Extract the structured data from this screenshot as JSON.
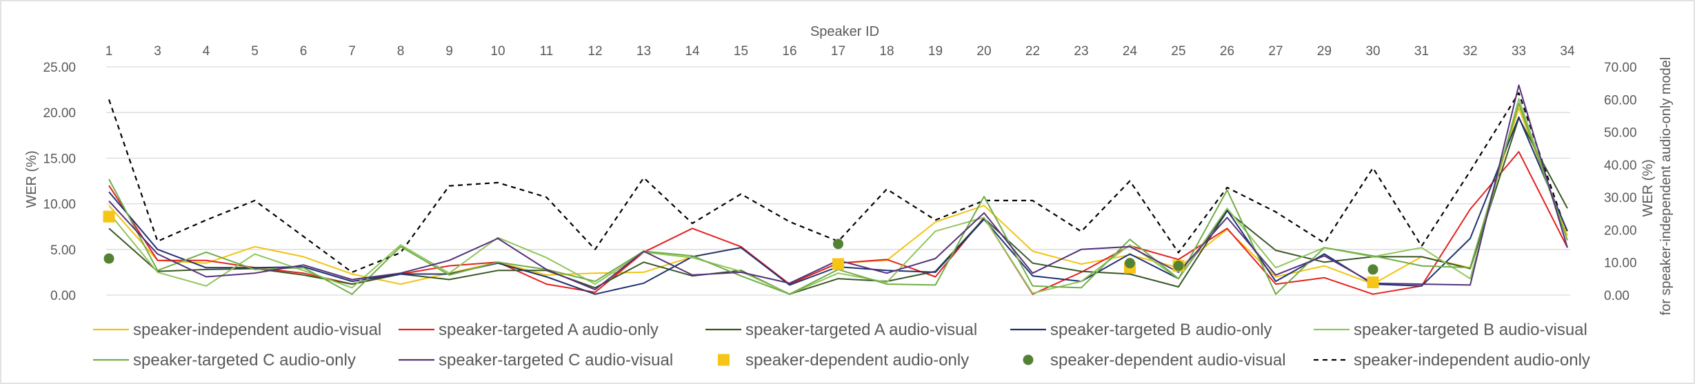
{
  "chart_data": {
    "type": "line",
    "title": "",
    "xlabel": "Speaker ID",
    "ylabel": "WER (%)",
    "y2label": [
      "WER (%)",
      "for speaker-independent audio-only model"
    ],
    "ylim": [
      0,
      25
    ],
    "y2lim": [
      0,
      70
    ],
    "yticks": [
      "0.00",
      "5.00",
      "10.00",
      "15.00",
      "20.00",
      "25.00"
    ],
    "y2ticks": [
      "0.00",
      "10.00",
      "20.00",
      "30.00",
      "40.00",
      "50.00",
      "60.00",
      "70.00"
    ],
    "categories": [
      "1",
      "3",
      "4",
      "5",
      "6",
      "7",
      "8",
      "9",
      "10",
      "11",
      "12",
      "13",
      "14",
      "15",
      "16",
      "17",
      "18",
      "19",
      "20",
      "22",
      "23",
      "24",
      "25",
      "26",
      "27",
      "29",
      "30",
      "31",
      "32",
      "33",
      "34"
    ],
    "grid": true,
    "legend_position": "bottom",
    "series": [
      {
        "name": "speaker-independent audio-visual",
        "style": "line",
        "axis": "left",
        "color": "#F2C314",
        "values": [
          9.8,
          3.8,
          3.5,
          5.3,
          4.2,
          2.3,
          1.2,
          2.4,
          3.6,
          2.2,
          2.4,
          2.5,
          4.2,
          5.2,
          1.2,
          3.5,
          3.8,
          8.0,
          9.8,
          4.8,
          3.4,
          4.4,
          3.0,
          7.2,
          2.0,
          3.2,
          1.2,
          4.2,
          3.0,
          20.5,
          6.5
        ]
      },
      {
        "name": "speaker-targeted A audio-only",
        "style": "line",
        "axis": "left",
        "color": "#E32020",
        "values": [
          12.0,
          3.8,
          3.8,
          3.0,
          2.4,
          1.2,
          2.3,
          3.2,
          3.6,
          1.2,
          0.3,
          4.7,
          7.3,
          5.3,
          1.2,
          3.5,
          3.9,
          2.0,
          8.5,
          0.1,
          2.5,
          5.4,
          3.9,
          7.3,
          1.2,
          1.9,
          0.1,
          1.0,
          9.4,
          15.7,
          5.2
        ]
      },
      {
        "name": "speaker-targeted A audio-visual",
        "style": "line",
        "axis": "left",
        "color": "#375623",
        "values": [
          7.3,
          2.6,
          2.8,
          2.9,
          2.2,
          1.2,
          2.3,
          1.7,
          2.7,
          2.7,
          0.8,
          3.6,
          2.1,
          2.7,
          0.1,
          1.8,
          1.5,
          2.6,
          8.4,
          3.5,
          2.6,
          2.3,
          0.9,
          9.2,
          4.9,
          3.6,
          4.2,
          4.2,
          2.9,
          19.4,
          9.5
        ]
      },
      {
        "name": "speaker-targeted B audio-only",
        "style": "line",
        "axis": "left",
        "color": "#1F3070",
        "values": [
          11.3,
          5.0,
          3.0,
          3.0,
          3.1,
          1.5,
          2.3,
          2.3,
          3.5,
          2.0,
          0.1,
          1.3,
          4.2,
          5.2,
          1.1,
          3.1,
          2.7,
          2.5,
          8.3,
          2.1,
          1.5,
          4.5,
          1.8,
          9.3,
          1.5,
          4.5,
          1.2,
          1.0,
          6.2,
          19.5,
          7.0
        ]
      },
      {
        "name": "speaker-targeted B audio-visual",
        "style": "line",
        "axis": "left",
        "color": "#8FC55A",
        "values": [
          9.0,
          2.5,
          1.0,
          4.5,
          2.7,
          0.8,
          5.5,
          2.4,
          6.3,
          4.1,
          1.2,
          4.7,
          4.1,
          2.6,
          0.1,
          2.4,
          1.4,
          7.0,
          8.5,
          0.2,
          1.5,
          5.5,
          1.8,
          9.5,
          3.0,
          5.2,
          4.2,
          5.2,
          1.8,
          21.5,
          6.0
        ]
      },
      {
        "name": "speaker-targeted C audio-only",
        "style": "line",
        "axis": "left",
        "color": "#70AD47",
        "values": [
          12.7,
          2.7,
          4.7,
          2.8,
          3.0,
          0.1,
          5.3,
          2.2,
          3.6,
          2.8,
          1.5,
          4.8,
          4.3,
          2.1,
          0.1,
          2.8,
          1.2,
          1.1,
          10.8,
          1.0,
          0.8,
          6.1,
          1.8,
          11.5,
          0.1,
          5.2,
          4.3,
          3.2,
          3.0,
          21.0,
          6.0
        ]
      },
      {
        "name": "speaker-targeted C audio-visual",
        "style": "line",
        "axis": "left",
        "color": "#54307A",
        "values": [
          10.3,
          4.5,
          2.0,
          2.4,
          3.3,
          1.7,
          2.4,
          3.8,
          6.2,
          2.8,
          0.6,
          4.8,
          2.2,
          2.5,
          1.3,
          3.8,
          2.4,
          4.0,
          9.0,
          2.4,
          5.0,
          5.3,
          2.5,
          8.5,
          2.2,
          4.3,
          1.3,
          1.2,
          1.1,
          23.0,
          5.2
        ]
      },
      {
        "name": "speaker-dependent audio-only",
        "style": "marker",
        "marker": "square",
        "axis": "left",
        "color": "#F5C518",
        "values": [
          8.6,
          null,
          null,
          null,
          null,
          null,
          null,
          null,
          null,
          null,
          null,
          null,
          null,
          null,
          null,
          3.4,
          null,
          null,
          null,
          null,
          null,
          3.0,
          3.2,
          null,
          null,
          null,
          1.4,
          null,
          null,
          null,
          null
        ]
      },
      {
        "name": "speaker-dependent audio-visual",
        "style": "marker",
        "marker": "circle",
        "axis": "left",
        "color": "#548235",
        "values": [
          4.0,
          null,
          null,
          null,
          null,
          null,
          null,
          null,
          null,
          null,
          null,
          null,
          null,
          null,
          null,
          5.6,
          null,
          null,
          null,
          null,
          null,
          3.5,
          3.2,
          null,
          null,
          null,
          2.8,
          null,
          null,
          null,
          null
        ]
      },
      {
        "name": "speaker-independent audio-only",
        "style": "dashed",
        "axis": "right",
        "color": "#000000",
        "values": [
          60.0,
          16.5,
          23.0,
          29.0,
          18.0,
          7.0,
          13.0,
          33.5,
          34.5,
          30.0,
          14.0,
          36.0,
          22.0,
          31.0,
          22.5,
          16.5,
          32.5,
          23.0,
          29.0,
          29.0,
          19.5,
          35.0,
          13.0,
          33.0,
          25.5,
          16.0,
          39.0,
          15.0,
          38.0,
          62.0,
          18.5
        ]
      }
    ]
  }
}
